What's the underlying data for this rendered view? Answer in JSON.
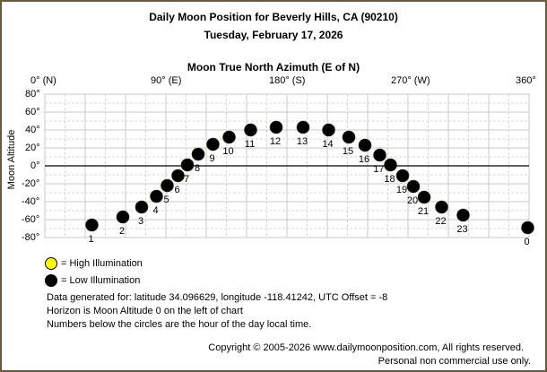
{
  "header": {
    "title": "Daily Moon Position for Beverly Hills, CA (90210)",
    "date": "Tuesday, February 17, 2026",
    "x_axis_title": "Moon True North Azimuth (E of N)",
    "y_axis_title": "Moon Altitude"
  },
  "x_ticks": [
    "0° (N)",
    "90° (E)",
    "180° (S)",
    "270° (W)",
    "360°"
  ],
  "y_ticks": [
    "80°",
    "60°",
    "40°",
    "20°",
    "0°",
    "-20°",
    "-40°",
    "-60°",
    "-80°"
  ],
  "legend": {
    "high": "= High Illumination",
    "low": "= Low Illumination",
    "high_color": "#ffff00",
    "low_color": "#000000"
  },
  "info": {
    "line1": "Data generated for: latitude 34.096629, longitude -118.41242, UTC Offset = -8",
    "line2": "Horizon is Moon Altitude 0 on the left of chart",
    "line3": "Numbers below the circles are the hour of the day local time."
  },
  "footer": {
    "copyright": "Copyright © 2005-2026 www.dailymoonposition.com, All rights reserved.",
    "usage": "Personal non commercial use only."
  },
  "chart_data": {
    "type": "scatter",
    "title": "Daily Moon Position for Beverly Hills, CA (90210)",
    "subtitle": "Tuesday, February 17, 2026",
    "xlabel": "Moon True North Azimuth (E of N)",
    "ylabel": "Moon Altitude",
    "xlim": [
      0,
      360
    ],
    "ylim": [
      -80,
      80
    ],
    "x_tick_values": [
      0,
      90,
      180,
      270,
      360
    ],
    "y_tick_values": [
      80,
      60,
      40,
      20,
      0,
      -20,
      -40,
      -60,
      -80
    ],
    "grid": true,
    "legend_position": "bottom-left",
    "points": [
      {
        "hour": "1",
        "azimuth": 35,
        "altitude": -66,
        "illumination": "low"
      },
      {
        "hour": "2",
        "azimuth": 58,
        "altitude": -57,
        "illumination": "low"
      },
      {
        "hour": "3",
        "azimuth": 72,
        "altitude": -46,
        "illumination": "low"
      },
      {
        "hour": "4",
        "azimuth": 83,
        "altitude": -34,
        "illumination": "low"
      },
      {
        "hour": "5",
        "azimuth": 91,
        "altitude": -22,
        "illumination": "low"
      },
      {
        "hour": "6",
        "azimuth": 99,
        "altitude": -11,
        "illumination": "low"
      },
      {
        "hour": "7",
        "azimuth": 106,
        "altitude": 1,
        "illumination": "low"
      },
      {
        "hour": "8",
        "azimuth": 114,
        "altitude": 13,
        "illumination": "low"
      },
      {
        "hour": "9",
        "azimuth": 125,
        "altitude": 24,
        "illumination": "low"
      },
      {
        "hour": "10",
        "azimuth": 137,
        "altitude": 32,
        "illumination": "low"
      },
      {
        "hour": "11",
        "azimuth": 153,
        "altitude": 40,
        "illumination": "low"
      },
      {
        "hour": "12",
        "azimuth": 172,
        "altitude": 43,
        "illumination": "low"
      },
      {
        "hour": "13",
        "azimuth": 192,
        "altitude": 43,
        "illumination": "low"
      },
      {
        "hour": "14",
        "azimuth": 211,
        "altitude": 40,
        "illumination": "low"
      },
      {
        "hour": "15",
        "azimuth": 226,
        "altitude": 32,
        "illumination": "low"
      },
      {
        "hour": "16",
        "azimuth": 238,
        "altitude": 23,
        "illumination": "low"
      },
      {
        "hour": "17",
        "azimuth": 249,
        "altitude": 12,
        "illumination": "low"
      },
      {
        "hour": "18",
        "azimuth": 257,
        "altitude": 1,
        "illumination": "low"
      },
      {
        "hour": "19",
        "azimuth": 266,
        "altitude": -11,
        "illumination": "low"
      },
      {
        "hour": "20",
        "azimuth": 274,
        "altitude": -23,
        "illumination": "low"
      },
      {
        "hour": "21",
        "azimuth": 282,
        "altitude": -35,
        "illumination": "low"
      },
      {
        "hour": "22",
        "azimuth": 295,
        "altitude": -46,
        "illumination": "low"
      },
      {
        "hour": "23",
        "azimuth": 311,
        "altitude": -55,
        "illumination": "low"
      },
      {
        "hour": "0",
        "azimuth": 359,
        "altitude": -69,
        "illumination": "low"
      }
    ]
  }
}
